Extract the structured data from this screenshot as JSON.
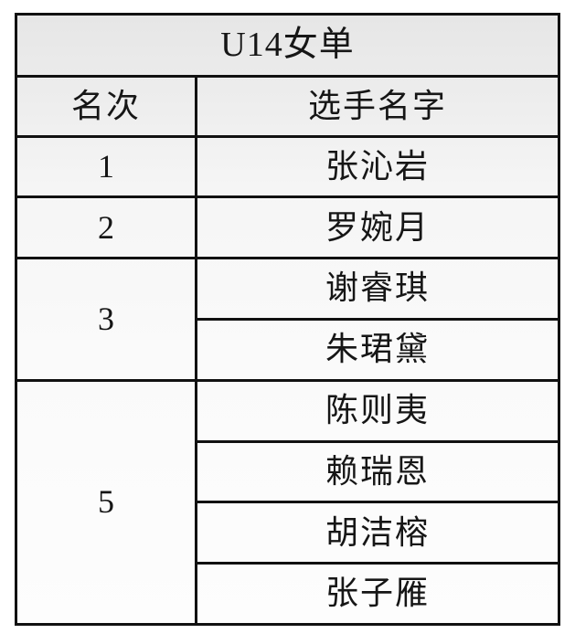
{
  "page": {
    "background": "#ffffff"
  },
  "table": {
    "title": "U14女单",
    "columns": [
      {
        "label": "名次"
      },
      {
        "label": "选手名字"
      }
    ],
    "groups": [
      {
        "rank": "1",
        "names": [
          "张沁岩"
        ]
      },
      {
        "rank": "2",
        "names": [
          "罗婉月"
        ]
      },
      {
        "rank": "3",
        "names": [
          "谢睿琪",
          "朱珺黛"
        ]
      },
      {
        "rank": "5",
        "names": [
          "陈则夷",
          "赖瑞恩",
          "胡洁榕",
          "张子雁"
        ]
      }
    ],
    "colors": {
      "border": "#111111",
      "text": "#161616",
      "fill_top": "#e6e6e6",
      "fill_bottom": "#fdfdfd"
    }
  },
  "chart_data": {
    "type": "table",
    "title": "U14女单",
    "columns": [
      "名次",
      "选手名字"
    ],
    "rows": [
      [
        "1",
        "张沁岩"
      ],
      [
        "2",
        "罗婉月"
      ],
      [
        "3",
        "谢睿琪"
      ],
      [
        "3",
        "朱珺黛"
      ],
      [
        "5",
        "陈则夷"
      ],
      [
        "5",
        "赖瑞恩"
      ],
      [
        "5",
        "胡洁榕"
      ],
      [
        "5",
        "张子雁"
      ]
    ]
  }
}
